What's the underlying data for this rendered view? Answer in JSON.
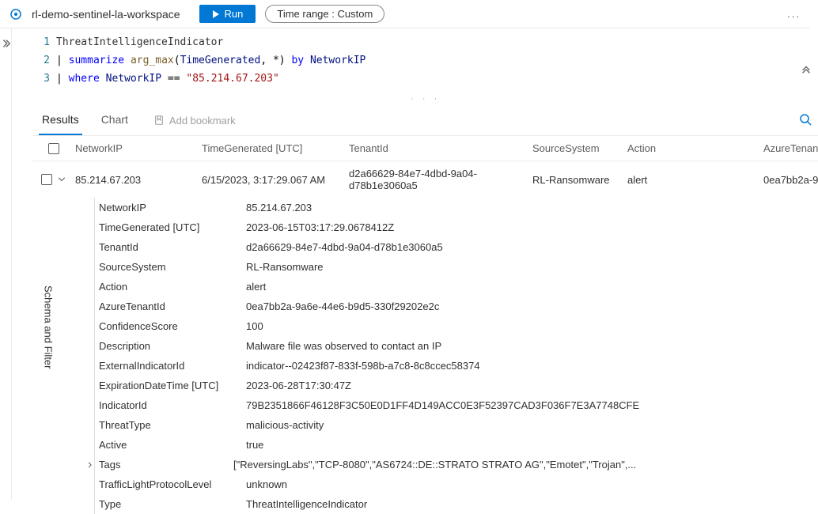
{
  "topbar": {
    "workspace": "rl-demo-sentinel-la-workspace",
    "run_label": "Run",
    "time_label": "Time range :",
    "time_value": "Custom",
    "more": "..."
  },
  "left_rail": {
    "expand_icon": "chevron-right"
  },
  "side_panel_label": "Schema and Filter",
  "editor": {
    "lines": [
      {
        "n": "1",
        "tokens": [
          {
            "t": "ThreatIntelligenceIndicator",
            "c": "tok-txt"
          }
        ]
      },
      {
        "n": "2",
        "tokens": [
          {
            "t": "| ",
            "c": "tok-op"
          },
          {
            "t": "summarize",
            "c": "tok-kw"
          },
          {
            "t": " ",
            "c": "tok-op"
          },
          {
            "t": "arg_max",
            "c": "tok-fn"
          },
          {
            "t": "(",
            "c": "tok-op"
          },
          {
            "t": "TimeGenerated",
            "c": "tok-id"
          },
          {
            "t": ", *",
            "c": "tok-op"
          },
          {
            "t": ") ",
            "c": "tok-op"
          },
          {
            "t": "by",
            "c": "tok-kw"
          },
          {
            "t": " ",
            "c": "tok-op"
          },
          {
            "t": "NetworkIP",
            "c": "tok-id"
          }
        ]
      },
      {
        "n": "3",
        "tokens": [
          {
            "t": "| ",
            "c": "tok-op"
          },
          {
            "t": "where",
            "c": "tok-kw"
          },
          {
            "t": " ",
            "c": "tok-op"
          },
          {
            "t": "NetworkIP",
            "c": "tok-id"
          },
          {
            "t": " == ",
            "c": "tok-op"
          },
          {
            "t": "\"85.214.67.203\"",
            "c": "tok-str"
          }
        ]
      }
    ]
  },
  "tabs": {
    "results": "Results",
    "chart": "Chart",
    "bookmark": "Add bookmark"
  },
  "columns": {
    "networkip": "NetworkIP",
    "timegen": "TimeGenerated [UTC]",
    "tenant": "TenantId",
    "source": "SourceSystem",
    "action": "Action",
    "atenant": "AzureTenan"
  },
  "row": {
    "networkip": "85.214.67.203",
    "timegen": "6/15/2023, 3:17:29.067 AM",
    "tenant": "d2a66629-84e7-4dbd-9a04-d78b1e3060a5",
    "source": "RL-Ransomware",
    "action": "alert",
    "atenant": "0ea7bb2a-9"
  },
  "details": [
    {
      "k": "NetworkIP",
      "v": "85.214.67.203"
    },
    {
      "k": "TimeGenerated [UTC]",
      "v": "2023-06-15T03:17:29.0678412Z"
    },
    {
      "k": "TenantId",
      "v": "d2a66629-84e7-4dbd-9a04-d78b1e3060a5"
    },
    {
      "k": "SourceSystem",
      "v": "RL-Ransomware"
    },
    {
      "k": "Action",
      "v": "alert"
    },
    {
      "k": "AzureTenantId",
      "v": "0ea7bb2a-9a6e-44e6-b9d5-330f29202e2c"
    },
    {
      "k": "ConfidenceScore",
      "v": "100"
    },
    {
      "k": "Description",
      "v": "Malware file was observed to contact an IP"
    },
    {
      "k": "ExternalIndicatorId",
      "v": "indicator--02423f87-833f-598b-a7c8-8c8ccec58374"
    },
    {
      "k": "ExpirationDateTime [UTC]",
      "v": "2023-06-28T17:30:47Z"
    },
    {
      "k": "IndicatorId",
      "v": "79B2351866F46128F3C50E0D1FF4D149ACC0E3F52397CAD3F036F7E3A7748CFE"
    },
    {
      "k": "ThreatType",
      "v": "malicious-activity"
    },
    {
      "k": "Active",
      "v": "true"
    },
    {
      "k": "Tags",
      "v": "[\"ReversingLabs\",\"TCP-8080\",\"AS6724::DE::STRATO STRATO AG\",\"Emotet\",\"Trojan\",...",
      "expandable": true
    },
    {
      "k": "TrafficLightProtocolLevel",
      "v": "unknown"
    },
    {
      "k": "Type",
      "v": "ThreatIntelligenceIndicator"
    }
  ],
  "colors": {
    "accent": "#0078d4",
    "border": "#edebe9",
    "text": "#323130",
    "muted": "#605e5c"
  }
}
